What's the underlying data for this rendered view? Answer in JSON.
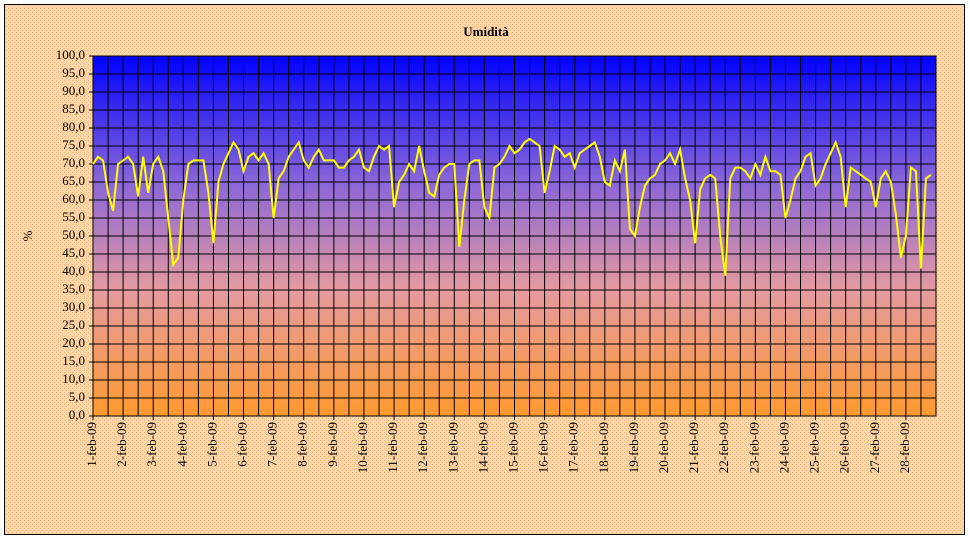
{
  "chart_data": {
    "type": "line",
    "title": "Umidità",
    "y_label": "%",
    "categories": [
      "1-feb-09",
      null,
      null,
      null,
      null,
      null,
      "2-feb-09",
      null,
      null,
      null,
      null,
      null,
      "3-feb-09",
      null,
      null,
      null,
      null,
      null,
      "4-feb-09",
      null,
      null,
      null,
      null,
      null,
      "5-feb-09",
      null,
      null,
      null,
      null,
      null,
      "6-feb-09",
      null,
      null,
      null,
      null,
      null,
      "7-feb-09",
      null,
      null,
      null,
      null,
      null,
      "8-feb-09",
      null,
      null,
      null,
      null,
      null,
      "9-feb-09",
      null,
      null,
      null,
      null,
      null,
      "10-feb-09",
      null,
      null,
      null,
      null,
      null,
      "11-feb-09",
      null,
      null,
      null,
      null,
      null,
      "12-feb-09",
      null,
      null,
      null,
      null,
      null,
      "13-feb-09",
      null,
      null,
      null,
      null,
      null,
      "14-feb-09",
      null,
      null,
      null,
      null,
      null,
      "15-feb-09",
      null,
      null,
      null,
      null,
      null,
      "16-feb-09",
      null,
      null,
      null,
      null,
      null,
      "17-feb-09",
      null,
      null,
      null,
      null,
      null,
      "18-feb-09",
      null,
      null,
      null,
      null,
      null,
      "19-feb-09",
      null,
      null,
      null,
      null,
      null,
      "20-feb-09",
      null,
      null,
      null,
      null,
      null,
      "21-feb-09",
      null,
      null,
      null,
      null,
      null,
      "22-feb-09",
      null,
      null,
      null,
      null,
      null,
      "23-feb-09",
      null,
      null,
      null,
      null,
      null,
      "24-feb-09",
      null,
      null,
      null,
      null,
      null,
      "25-feb-09",
      null,
      null,
      null,
      null,
      null,
      "26-feb-09",
      null,
      null,
      null,
      null,
      null,
      "27-feb-09",
      null,
      null,
      null,
      null,
      null,
      "28-feb-09",
      null,
      null,
      null,
      null,
      null
    ],
    "series": [
      {
        "name": "Umidità",
        "color": "#ffff00",
        "values": [
          70,
          72,
          71,
          62,
          57,
          70,
          71,
          72,
          70,
          61,
          72,
          62,
          70,
          72,
          68,
          55,
          42,
          44,
          60,
          70,
          71,
          71,
          71,
          62,
          48,
          65,
          70,
          73,
          76,
          74,
          68,
          72,
          73,
          71,
          73,
          70,
          55,
          66,
          68,
          72,
          74,
          76,
          71,
          69,
          72,
          74,
          71,
          71,
          71,
          69,
          69,
          71,
          72,
          74,
          69,
          68,
          72,
          75,
          74,
          75,
          58,
          65,
          67,
          70,
          68,
          75,
          68,
          62,
          61,
          67,
          69,
          70,
          70,
          47,
          60,
          70,
          71,
          71,
          58,
          55,
          69,
          70,
          72,
          75,
          73,
          74,
          76,
          77,
          76,
          75,
          62,
          68,
          75,
          74,
          72,
          73,
          69,
          73,
          74,
          75,
          76,
          72,
          65,
          64,
          71,
          68,
          74,
          52,
          50,
          58,
          64,
          66,
          67,
          70,
          71,
          73,
          70,
          74,
          66,
          60,
          48,
          63,
          66,
          67,
          66,
          50,
          39,
          66,
          69,
          69,
          68,
          66,
          70,
          67,
          72,
          68,
          68,
          67,
          55,
          60,
          66,
          68,
          72,
          73,
          64,
          66,
          70,
          73,
          76,
          72,
          58,
          69,
          68,
          67,
          66,
          65,
          58,
          66,
          68,
          65,
          56,
          44,
          50,
          69,
          68,
          41,
          66,
          67
        ]
      }
    ],
    "ylim": [
      0,
      100
    ],
    "yticks": [
      {
        "value": 0,
        "label": "0,0"
      },
      {
        "value": 5,
        "label": "5,0"
      },
      {
        "value": 10,
        "label": "10,0"
      },
      {
        "value": 15,
        "label": "15,0"
      },
      {
        "value": 20,
        "label": "20,0"
      },
      {
        "value": 25,
        "label": "25,0"
      },
      {
        "value": 30,
        "label": "30,0"
      },
      {
        "value": 35,
        "label": "35,0"
      },
      {
        "value": 40,
        "label": "40,0"
      },
      {
        "value": 45,
        "label": "45,0"
      },
      {
        "value": 50,
        "label": "50,0"
      },
      {
        "value": 55,
        "label": "55,0"
      },
      {
        "value": 60,
        "label": "60,0"
      },
      {
        "value": 65,
        "label": "65,0"
      },
      {
        "value": 70,
        "label": "70,0"
      },
      {
        "value": 75,
        "label": "75,0"
      },
      {
        "value": 80,
        "label": "80,0"
      },
      {
        "value": 85,
        "label": "85,0"
      },
      {
        "value": 90,
        "label": "90,0"
      },
      {
        "value": 95,
        "label": "95,0"
      },
      {
        "value": 100,
        "label": "100,0"
      }
    ],
    "grid": true
  }
}
